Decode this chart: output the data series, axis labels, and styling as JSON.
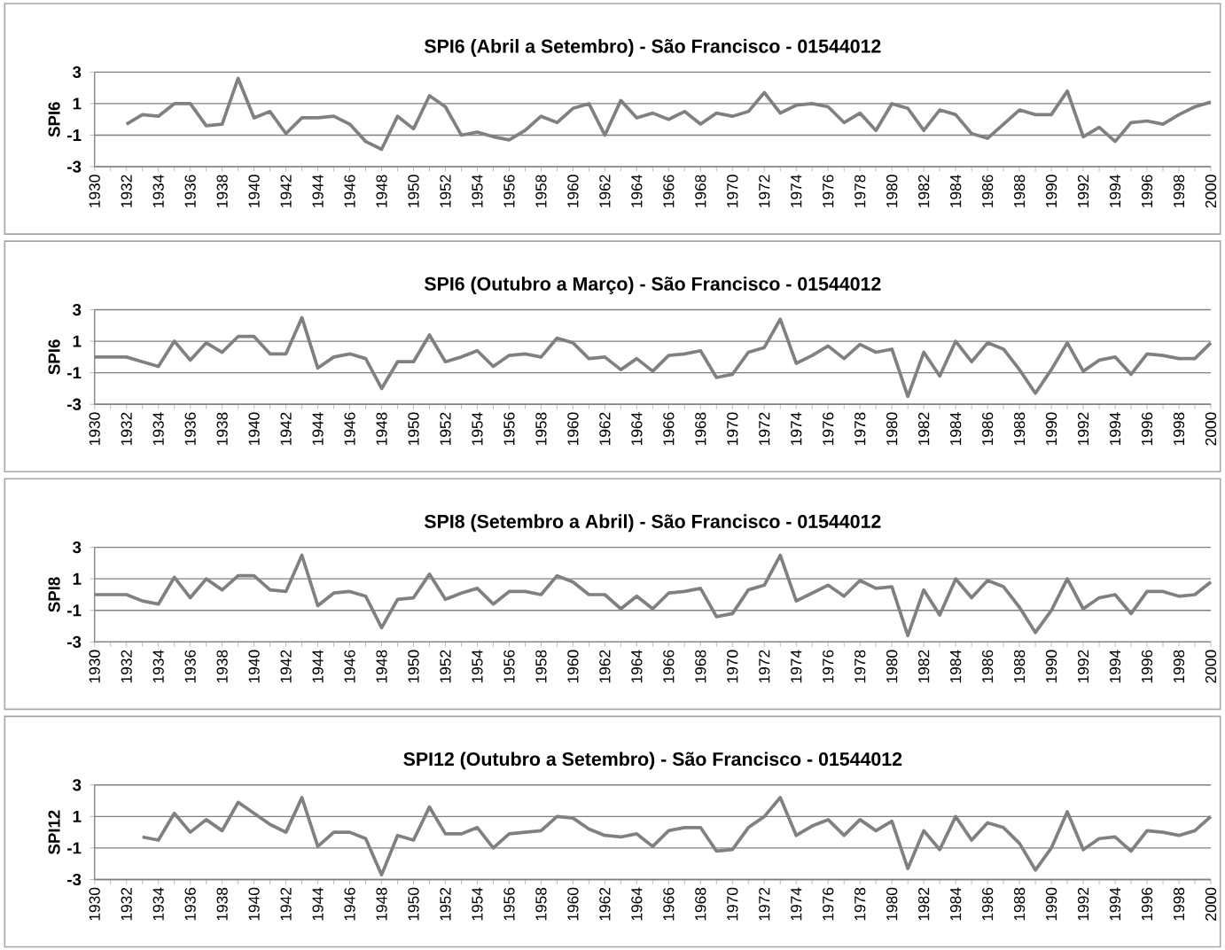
{
  "chart_data": [
    {
      "type": "line",
      "title": "SPI6 (Abril a Setembro) - São Francisco - 01544012",
      "ylabel": "SPI6",
      "categories": [
        "1930",
        null,
        "1932",
        null,
        "1934",
        null,
        "1936",
        null,
        "1938",
        null,
        "1940",
        null,
        "1942",
        null,
        "1944",
        null,
        "1946",
        null,
        "1948",
        null,
        "1950",
        null,
        "1952",
        null,
        "1954",
        null,
        "1956",
        null,
        "1958",
        null,
        "1960",
        null,
        "1962",
        null,
        "1964",
        null,
        "1966",
        null,
        "1968",
        null,
        "1970",
        null,
        "1972",
        null,
        "1974",
        null,
        "1976",
        null,
        "1978",
        null,
        "1980",
        null,
        "1982",
        null,
        "1984",
        null,
        "1986",
        null,
        "1988",
        null,
        "1990",
        null,
        "1992",
        null,
        "1994",
        null,
        "1996",
        null,
        "1998",
        null,
        "2000"
      ],
      "color": "#808080",
      "ylim": [
        -3,
        3
      ],
      "yticks": [
        -3,
        -1,
        1,
        3
      ],
      "grid": "y",
      "values": [
        null,
        null,
        -0.3,
        0.3,
        0.2,
        1.0,
        1.0,
        -0.4,
        -0.3,
        2.6,
        0.1,
        0.5,
        -0.9,
        0.1,
        0.1,
        0.2,
        -0.3,
        -1.4,
        -1.9,
        0.2,
        -0.6,
        1.5,
        0.8,
        -1.0,
        -0.8,
        -1.1,
        -1.3,
        -0.7,
        0.2,
        -0.2,
        0.7,
        1.0,
        -1.0,
        1.2,
        0.1,
        0.4,
        0.0,
        0.5,
        -0.3,
        0.4,
        0.2,
        0.5,
        1.7,
        0.4,
        0.9,
        1.0,
        0.8,
        -0.2,
        0.4,
        -0.7,
        1.0,
        0.7,
        -0.7,
        0.6,
        0.3,
        -0.9,
        -1.2,
        -0.3,
        0.6,
        0.3,
        0.3,
        1.8,
        -1.1,
        -0.5,
        -1.4,
        -0.2,
        -0.1,
        -0.3,
        0.3,
        0.8,
        1.1
      ]
    },
    {
      "type": "line",
      "title": "SPI6 (Outubro a Março) - São Francisco - 01544012",
      "ylabel": "SPI6",
      "categories": [
        "1930",
        null,
        "1932",
        null,
        "1934",
        null,
        "1936",
        null,
        "1938",
        null,
        "1940",
        null,
        "1942",
        null,
        "1944",
        null,
        "1946",
        null,
        "1948",
        null,
        "1950",
        null,
        "1952",
        null,
        "1954",
        null,
        "1956",
        null,
        "1958",
        null,
        "1960",
        null,
        "1962",
        null,
        "1964",
        null,
        "1966",
        null,
        "1968",
        null,
        "1970",
        null,
        "1972",
        null,
        "1974",
        null,
        "1976",
        null,
        "1978",
        null,
        "1980",
        null,
        "1982",
        null,
        "1984",
        null,
        "1986",
        null,
        "1988",
        null,
        "1990",
        null,
        "1992",
        null,
        "1994",
        null,
        "1996",
        null,
        "1998",
        null,
        "2000"
      ],
      "color": "#808080",
      "ylim": [
        -3,
        3
      ],
      "yticks": [
        -3,
        -1,
        1,
        3
      ],
      "grid": "y",
      "values": [
        0.0,
        0.0,
        0.0,
        -0.3,
        -0.6,
        1.0,
        -0.2,
        0.9,
        0.3,
        1.3,
        1.3,
        0.2,
        0.2,
        2.5,
        -0.7,
        0.0,
        0.2,
        -0.1,
        -2.0,
        -0.3,
        -0.3,
        1.4,
        -0.3,
        0.0,
        0.4,
        -0.6,
        0.1,
        0.2,
        0.0,
        1.2,
        0.9,
        -0.1,
        0.0,
        -0.8,
        -0.1,
        -0.9,
        0.1,
        0.2,
        0.4,
        -1.3,
        -1.1,
        0.3,
        0.6,
        2.4,
        -0.4,
        0.1,
        0.7,
        -0.1,
        0.8,
        0.3,
        0.5,
        -2.5,
        0.3,
        -1.2,
        1.0,
        -0.3,
        0.9,
        0.5,
        -0.8,
        -2.3,
        -0.8,
        0.9,
        -0.9,
        -0.2,
        0.0,
        -1.1,
        0.2,
        0.1,
        -0.1,
        -0.1,
        0.9
      ]
    },
    {
      "type": "line",
      "title": "SPI8 (Setembro a Abril) - São Francisco - 01544012",
      "ylabel": "SPI8",
      "categories": [
        "1930",
        null,
        "1932",
        null,
        "1934",
        null,
        "1936",
        null,
        "1938",
        null,
        "1940",
        null,
        "1942",
        null,
        "1944",
        null,
        "1946",
        null,
        "1948",
        null,
        "1950",
        null,
        "1952",
        null,
        "1954",
        null,
        "1956",
        null,
        "1958",
        null,
        "1960",
        null,
        "1962",
        null,
        "1964",
        null,
        "1966",
        null,
        "1968",
        null,
        "1970",
        null,
        "1972",
        null,
        "1974",
        null,
        "1976",
        null,
        "1978",
        null,
        "1980",
        null,
        "1982",
        null,
        "1984",
        null,
        "1986",
        null,
        "1988",
        null,
        "1990",
        null,
        "1992",
        null,
        "1994",
        null,
        "1996",
        null,
        "1998",
        null,
        "2000"
      ],
      "color": "#808080",
      "ylim": [
        -3,
        3
      ],
      "yticks": [
        -3,
        -1,
        1,
        3
      ],
      "grid": "y",
      "values": [
        0.0,
        0.0,
        0.0,
        -0.4,
        -0.6,
        1.1,
        -0.2,
        1.0,
        0.3,
        1.2,
        1.2,
        0.3,
        0.2,
        2.5,
        -0.7,
        0.1,
        0.2,
        -0.1,
        -2.1,
        -0.3,
        -0.2,
        1.3,
        -0.3,
        0.1,
        0.4,
        -0.6,
        0.2,
        0.2,
        0.0,
        1.2,
        0.8,
        0.0,
        0.0,
        -0.9,
        -0.1,
        -0.9,
        0.1,
        0.2,
        0.4,
        -1.4,
        -1.2,
        0.3,
        0.6,
        2.5,
        -0.4,
        0.1,
        0.6,
        -0.1,
        0.9,
        0.4,
        0.5,
        -2.6,
        0.3,
        -1.3,
        1.0,
        -0.2,
        0.9,
        0.5,
        -0.8,
        -2.4,
        -1.0,
        1.0,
        -0.9,
        -0.2,
        0.0,
        -1.2,
        0.2,
        0.2,
        -0.1,
        0.0,
        0.8
      ]
    },
    {
      "type": "line",
      "title": "SPI12 (Outubro a Setembro) - São Francisco - 01544012",
      "ylabel": "SPI12",
      "categories": [
        "1930",
        null,
        "1932",
        null,
        "1934",
        null,
        "1936",
        null,
        "1938",
        null,
        "1940",
        null,
        "1942",
        null,
        "1944",
        null,
        "1946",
        null,
        "1948",
        null,
        "1950",
        null,
        "1952",
        null,
        "1954",
        null,
        "1956",
        null,
        "1958",
        null,
        "1960",
        null,
        "1962",
        null,
        "1964",
        null,
        "1966",
        null,
        "1968",
        null,
        "1970",
        null,
        "1972",
        null,
        "1974",
        null,
        "1976",
        null,
        "1978",
        null,
        "1980",
        null,
        "1982",
        null,
        "1984",
        null,
        "1986",
        null,
        "1988",
        null,
        "1990",
        null,
        "1992",
        null,
        "1994",
        null,
        "1996",
        null,
        "1998",
        null,
        "2000"
      ],
      "color": "#808080",
      "ylim": [
        -3,
        3
      ],
      "yticks": [
        -3,
        -1,
        1,
        3
      ],
      "grid": "y",
      "values": [
        null,
        null,
        null,
        -0.3,
        -0.5,
        1.2,
        0.0,
        0.8,
        0.1,
        1.9,
        1.2,
        0.5,
        0.0,
        2.2,
        -0.9,
        0.0,
        0.0,
        -0.4,
        -2.7,
        -0.2,
        -0.5,
        1.6,
        -0.1,
        -0.1,
        0.3,
        -1.0,
        -0.1,
        0.0,
        0.1,
        1.0,
        0.9,
        0.2,
        -0.2,
        -0.3,
        -0.1,
        -0.9,
        0.1,
        0.3,
        0.3,
        -1.2,
        -1.1,
        0.3,
        1.0,
        2.2,
        -0.2,
        0.4,
        0.8,
        -0.2,
        0.8,
        0.1,
        0.7,
        -2.3,
        0.1,
        -1.1,
        1.0,
        -0.5,
        0.6,
        0.3,
        -0.7,
        -2.4,
        -1.0,
        1.3,
        -1.1,
        -0.4,
        -0.3,
        -1.2,
        0.1,
        0.0,
        -0.2,
        0.1,
        1.0
      ]
    }
  ]
}
